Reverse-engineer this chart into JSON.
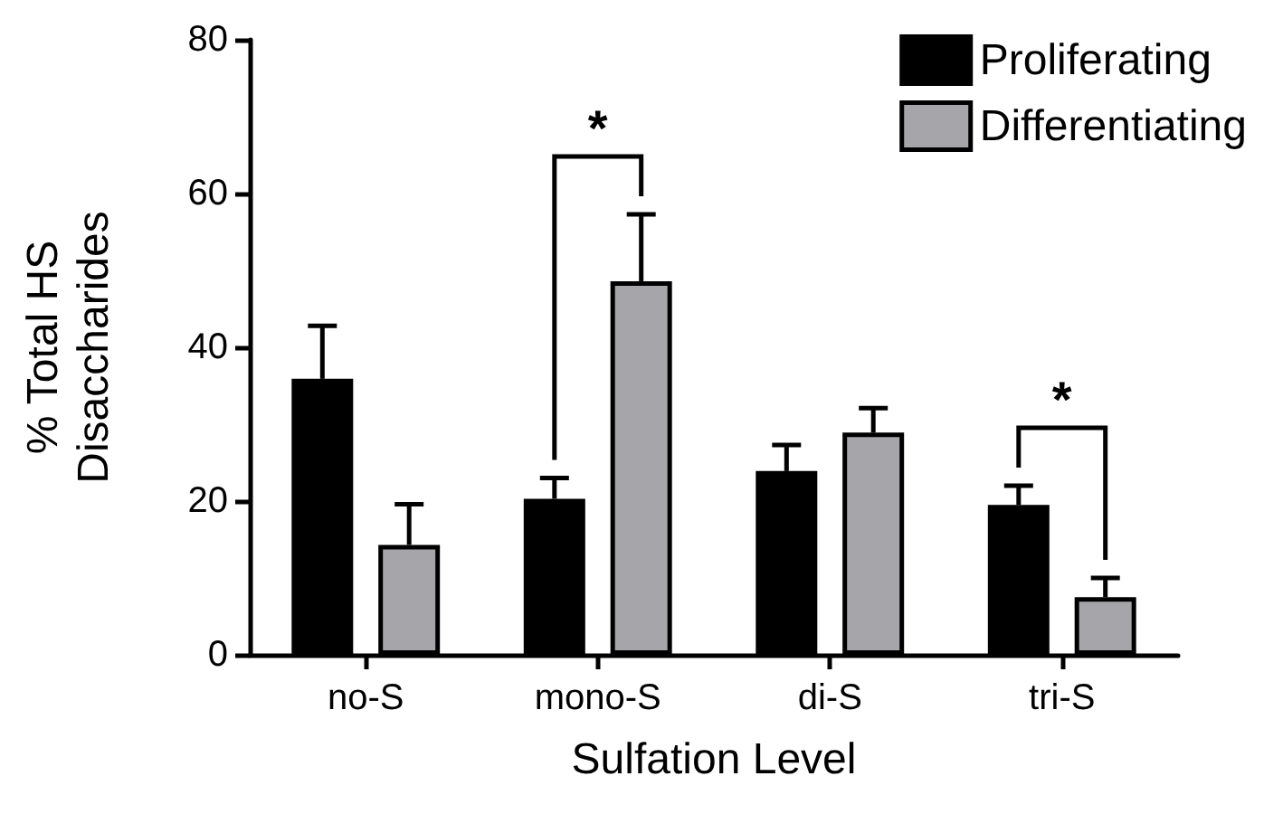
{
  "chart_data": {
    "type": "bar",
    "xlabel": "Sulfation Level",
    "ylabel": "% Total HS\nDisaccharides",
    "categories": [
      "no-S",
      "mono-S",
      "di-S",
      "tri-S"
    ],
    "series": [
      {
        "name": "Proliferating",
        "color": "#000000",
        "values": [
          35.9,
          20.3,
          23.9,
          19.5
        ],
        "errors": [
          [
            35.9,
            42.8
          ],
          [
            20.3,
            23.0
          ],
          [
            23.9,
            27.3
          ],
          [
            19.5,
            22.0
          ]
        ]
      },
      {
        "name": "Differentiating",
        "color": "#a6a6aa",
        "values": [
          14.3,
          48.6,
          28.9,
          7.5
        ],
        "errors": [
          [
            14.3,
            19.6
          ],
          [
            48.6,
            57.3
          ],
          [
            28.9,
            32.1
          ],
          [
            7.5,
            10.0
          ]
        ]
      }
    ],
    "annotations": [
      "*",
      "*"
    ],
    "ylim": [
      0,
      80
    ],
    "yticks": [
      0,
      20,
      40,
      60,
      80
    ],
    "grid": false,
    "legend": "top right"
  }
}
